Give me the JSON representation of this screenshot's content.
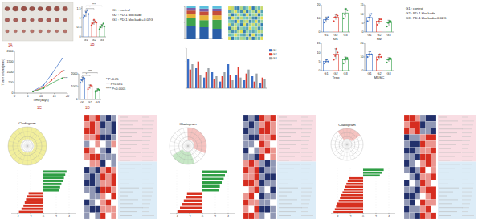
{
  "chart_data": [
    {
      "type": "bar",
      "categories": [
        "G1",
        "G2",
        "G3"
      ],
      "values": [
        1.2,
        0.75,
        0.55
      ],
      "errors": [
        0.15,
        0.12,
        0.1
      ],
      "points": [
        [
          1.0,
          1.1,
          1.3,
          1.4,
          1.2
        ],
        [
          0.6,
          0.7,
          0.9,
          0.8,
          0.75
        ],
        [
          0.4,
          0.5,
          0.6,
          0.7,
          0.55
        ]
      ],
      "colors": [
        "#3b6fc6",
        "#e03c31",
        "#2f9e44"
      ],
      "ylim": [
        0,
        1.6
      ],
      "yticks": [
        0,
        0.5,
        1,
        1.5
      ],
      "annotations": [
        "*",
        "***"
      ]
    },
    {
      "type": "line",
      "x": [
        7,
        11,
        14,
        18
      ],
      "series": [
        {
          "color": "#3b6fc6",
          "values": [
            90,
            380,
            900,
            1650
          ]
        },
        {
          "color": "#e03c31",
          "values": [
            80,
            280,
            620,
            1050
          ]
        },
        {
          "color": "#2f9e44",
          "values": [
            70,
            230,
            470,
            720
          ]
        }
      ],
      "xlim": [
        0,
        20
      ],
      "xticks": [
        0,
        5,
        10,
        15,
        20
      ],
      "ylim": [
        0,
        2000
      ],
      "yticks": [
        0,
        500,
        1000,
        1500,
        2000
      ],
      "x_label": "Time(days)",
      "y_label": "Tumor Volume(mm³)",
      "annotations": [
        "*",
        "****"
      ],
      "marker": "circle"
    },
    {
      "type": "bar",
      "categories": [
        "G1",
        "G2",
        "G3"
      ],
      "values": [
        1550,
        980,
        700
      ],
      "errors": [
        200,
        150,
        120
      ],
      "points": [
        [
          1300,
          1500,
          1700,
          1650
        ],
        [
          800,
          950,
          1100,
          1050
        ],
        [
          600,
          650,
          800,
          750
        ]
      ],
      "colors": [
        "#3b6fc6",
        "#e03c31",
        "#2f9e44"
      ],
      "ylim": [
        0,
        2000
      ],
      "yticks": [
        0,
        1000,
        2000
      ],
      "annotations": [
        "*",
        "****"
      ]
    },
    {
      "type": "bar",
      "stacked": true,
      "tick_labels": false,
      "categories": [
        null,
        null,
        null
      ],
      "series": [
        {
          "color": "#2b5fa8",
          "values": [
            40,
            35,
            30
          ]
        },
        {
          "color": "#3fa34d",
          "values": [
            25,
            22,
            28
          ]
        },
        {
          "color": "#e8b33a",
          "values": [
            12,
            15,
            14
          ]
        },
        {
          "color": "#c44e3a",
          "values": [
            10,
            12,
            13
          ]
        },
        {
          "color": "#7b5ea7",
          "values": [
            8,
            9,
            8
          ]
        },
        {
          "color": "#5bc0de",
          "values": [
            5,
            7,
            7
          ]
        }
      ],
      "ylim": [
        0,
        100
      ],
      "yticks": [
        0,
        50,
        100
      ]
    },
    {
      "type": "heatmap",
      "color_range": [
        0,
        1
      ],
      "cells": [
        [
          0.9,
          0.8,
          0.2,
          0.1,
          0.7,
          0.3,
          0.5,
          0.9,
          0.1,
          0.6,
          0.4,
          0.8
        ],
        [
          0.3,
          0.6,
          0.9,
          0.4,
          0.2,
          0.8,
          0.1,
          0.5,
          0.7,
          0.2,
          0.9,
          0.3
        ],
        [
          0.7,
          0.1,
          0.4,
          0.8,
          0.5,
          0.2,
          0.9,
          0.3,
          0.6,
          0.8,
          0.1,
          0.5
        ],
        [
          0.2,
          0.9,
          0.6,
          0.3,
          0.8,
          0.5,
          0.4,
          0.7,
          0.2,
          0.1,
          0.6,
          0.9
        ],
        [
          0.5,
          0.4,
          0.1,
          0.9,
          0.3,
          0.7,
          0.8,
          0.2,
          0.4,
          0.9,
          0.3,
          0.6
        ],
        [
          0.8,
          0.3,
          0.7,
          0.5,
          0.1,
          0.9,
          0.2,
          0.6,
          0.8,
          0.4,
          0.7,
          0.1
        ],
        [
          0.1,
          0.7,
          0.8,
          0.2,
          0.6,
          0.4,
          0.3,
          0.9,
          0.5,
          0.7,
          0.2,
          0.4
        ],
        [
          0.6,
          0.2,
          0.3,
          0.7,
          0.9,
          0.1,
          0.6,
          0.4,
          0.3,
          0.5,
          0.8,
          0.7
        ],
        [
          0.4,
          0.5,
          0.9,
          0.6,
          0.4,
          0.3,
          0.7,
          0.1,
          0.9,
          0.3,
          0.5,
          0.2
        ],
        [
          0.9,
          0.1,
          0.5,
          0.4,
          0.7,
          0.6,
          0.2,
          0.8,
          0.1,
          0.6,
          0.4,
          0.9
        ]
      ]
    },
    {
      "type": "bar",
      "tick_labels": false,
      "legend": "right",
      "categories": [
        null,
        null,
        null,
        null,
        null,
        null,
        null,
        null,
        null,
        null
      ],
      "series": [
        {
          "name": "G1",
          "color": "#3b6fc6",
          "values": [
            22,
            15,
            8,
            12,
            5,
            18,
            10,
            6,
            9,
            4
          ]
        },
        {
          "name": "G2",
          "color": "#e03c31",
          "values": [
            14,
            20,
            12,
            7,
            9,
            10,
            16,
            11,
            5,
            8
          ]
        },
        {
          "name": "G3",
          "color": "#9aa0a6",
          "values": [
            18,
            10,
            15,
            9,
            12,
            6,
            8,
            14,
            11,
            7
          ]
        }
      ],
      "ylim": [
        0,
        30
      ],
      "yticks": [
        0,
        10,
        20,
        30
      ]
    },
    {
      "type": "bar",
      "title": "M1",
      "categories": [
        "G1",
        "G2",
        "G3"
      ],
      "values": [
        9,
        11,
        14
      ],
      "errors": [
        2,
        2,
        3
      ],
      "points": [
        [
          7,
          9,
          10,
          11
        ],
        [
          8,
          11,
          13,
          12
        ],
        [
          10,
          13,
          17,
          16
        ]
      ],
      "colors": [
        "#3b6fc6",
        "#e03c31",
        "#2f9e44"
      ],
      "ylim": [
        0,
        20
      ],
      "yticks": [
        0,
        10,
        20
      ]
    },
    {
      "type": "bar",
      "title": "M2",
      "categories": [
        "G1",
        "G2",
        "G3"
      ],
      "values": [
        8,
        6,
        5
      ],
      "errors": [
        2,
        1.5,
        1.5
      ],
      "points": [
        [
          6,
          8,
          9,
          10
        ],
        [
          4,
          6,
          7,
          7
        ],
        [
          3,
          5,
          6,
          6
        ]
      ],
      "colors": [
        "#3b6fc6",
        "#e03c31",
        "#2f9e44"
      ],
      "ylim": [
        0,
        15
      ],
      "yticks": [
        0,
        5,
        10,
        15
      ]
    },
    {
      "type": "bar",
      "title": "Treg",
      "categories": [
        "G1",
        "G2",
        "G3"
      ],
      "values": [
        5,
        9,
        6
      ],
      "errors": [
        1,
        3,
        1.5
      ],
      "points": [
        [
          4,
          5,
          6,
          5
        ],
        [
          6,
          8,
          12,
          10
        ],
        [
          4,
          6,
          7,
          7
        ]
      ],
      "colors": [
        "#3b6fc6",
        "#e03c31",
        "#2f9e44"
      ],
      "ylim": [
        0,
        15
      ],
      "yticks": [
        0,
        5,
        10,
        15
      ]
    },
    {
      "type": "bar",
      "title": "MDSC",
      "categories": [
        "G1",
        "G2",
        "G3"
      ],
      "values": [
        12,
        10,
        8
      ],
      "errors": [
        2,
        2,
        1.5
      ],
      "points": [
        [
          10,
          12,
          14,
          12
        ],
        [
          8,
          10,
          12,
          10
        ],
        [
          6,
          8,
          9,
          9
        ]
      ],
      "colors": [
        "#3b6fc6",
        "#e03c31",
        "#2f9e44"
      ],
      "ylim": [
        0,
        20
      ],
      "yticks": [
        0,
        10,
        20
      ]
    },
    {
      "type": "bar",
      "orientation": "horizontal",
      "categories": [
        null,
        null,
        null,
        null,
        null,
        null,
        null,
        null,
        null,
        null,
        null,
        null,
        null,
        null
      ],
      "values": [
        3.6,
        3.4,
        3.2,
        3.0,
        2.8,
        2.6,
        2.4,
        -2.3,
        -2.5,
        -2.7,
        -2.9,
        -3.1,
        -3.4,
        -3.8
      ],
      "colors": [
        "#2e9e44",
        "#2e9e44",
        "#2e9e44",
        "#2e9e44",
        "#2e9e44",
        "#2e9e44",
        "#2e9e44",
        "#d7301f",
        "#d7301f",
        "#d7301f",
        "#d7301f",
        "#d7301f",
        "#d7301f",
        "#d7301f"
      ],
      "xlim": [
        -5,
        5
      ],
      "xticks": [
        -4,
        -2,
        0,
        2,
        4
      ]
    },
    {
      "type": "bar",
      "orientation": "horizontal",
      "categories": [
        null,
        null,
        null,
        null,
        null,
        null,
        null,
        null,
        null,
        null,
        null,
        null
      ],
      "values": [
        3.8,
        3.5,
        3.3,
        3.0,
        2.7,
        2.5,
        -2.4,
        -2.6,
        -2.9,
        -3.2,
        -3.5,
        -3.9
      ],
      "colors": [
        "#2e9e44",
        "#2e9e44",
        "#2e9e44",
        "#2e9e44",
        "#2e9e44",
        "#2e9e44",
        "#d7301f",
        "#d7301f",
        "#d7301f",
        "#d7301f",
        "#d7301f",
        "#d7301f"
      ],
      "xlim": [
        -5,
        5
      ],
      "xticks": [
        -4,
        -2,
        0,
        2,
        4
      ]
    },
    {
      "type": "bar",
      "orientation": "horizontal",
      "categories": [
        null,
        null,
        null,
        null,
        null,
        null,
        null,
        null,
        null,
        null,
        null,
        null,
        null,
        null,
        null,
        null
      ],
      "values": [
        3.2,
        2.9,
        2.6,
        -2.2,
        -2.4,
        -2.6,
        -2.8,
        -3.0,
        -3.2,
        -3.4,
        -3.6,
        -3.8,
        -4.0,
        -4.2,
        -4.4,
        -4.6
      ],
      "colors": [
        "#2e9e44",
        "#2e9e44",
        "#2e9e44",
        "#d7301f",
        "#d7301f",
        "#d7301f",
        "#d7301f",
        "#d7301f",
        "#d7301f",
        "#d7301f",
        "#d7301f",
        "#d7301f",
        "#d7301f",
        "#d7301f",
        "#d7301f",
        "#d7301f"
      ],
      "xlim": [
        -5,
        5
      ],
      "xticks": [
        -4,
        -2,
        0,
        2,
        4
      ]
    },
    {
      "type": "heatmap",
      "color_range": [
        -2,
        2
      ],
      "cells": [
        [
          2,
          1,
          2,
          -1,
          -2,
          -1
        ],
        [
          1,
          2,
          1,
          -2,
          -1,
          -2
        ],
        [
          2,
          2,
          1,
          -1,
          -1,
          -2
        ],
        [
          1,
          1,
          2,
          -2,
          -2,
          -1
        ],
        [
          -1,
          0,
          1,
          0,
          -1,
          1
        ],
        [
          2,
          1,
          0,
          -1,
          -2,
          0
        ],
        [
          1,
          2,
          2,
          -1,
          -1,
          -1
        ],
        [
          0,
          1,
          1,
          -2,
          0,
          -1
        ],
        [
          -2,
          -1,
          -2,
          1,
          2,
          1
        ],
        [
          -1,
          -2,
          -1,
          2,
          1,
          2
        ],
        [
          -2,
          -2,
          -1,
          1,
          1,
          2
        ],
        [
          -1,
          -1,
          -2,
          2,
          2,
          1
        ],
        [
          0,
          -1,
          -1,
          1,
          0,
          2
        ],
        [
          -2,
          -1,
          0,
          1,
          2,
          0
        ],
        [
          -1,
          -2,
          -2,
          1,
          1,
          1
        ],
        [
          -1,
          0,
          -1,
          2,
          0,
          1
        ]
      ]
    },
    {
      "type": "heatmap",
      "color_range": [
        -2,
        2
      ],
      "cells": [
        [
          -2,
          -1,
          -2,
          2,
          1,
          2
        ],
        [
          -1,
          -2,
          -1,
          1,
          2,
          1
        ],
        [
          -2,
          -1,
          -1,
          2,
          2,
          1
        ],
        [
          -1,
          -2,
          -2,
          1,
          1,
          2
        ],
        [
          -1,
          -1,
          0,
          2,
          1,
          0
        ],
        [
          -2,
          0,
          -1,
          1,
          2,
          1
        ],
        [
          -1,
          -1,
          -2,
          2,
          0,
          1
        ],
        [
          1,
          2,
          1,
          -1,
          -2,
          -1
        ],
        [
          2,
          1,
          2,
          -2,
          -1,
          -1
        ],
        [
          1,
          1,
          2,
          -1,
          -2,
          -2
        ],
        [
          2,
          2,
          1,
          -2,
          -1,
          -1
        ],
        [
          0,
          1,
          2,
          -1,
          0,
          -2
        ],
        [
          1,
          2,
          0,
          -2,
          -1,
          -1
        ],
        [
          2,
          1,
          1,
          -1,
          -1,
          0
        ],
        [
          1,
          0,
          2,
          -2,
          -2,
          -1
        ],
        [
          2,
          2,
          1,
          -1,
          0,
          -1
        ]
      ]
    },
    {
      "type": "heatmap",
      "color_range": [
        -2,
        2
      ],
      "cells": [
        [
          2,
          2,
          1,
          -1,
          -2,
          -2
        ],
        [
          1,
          2,
          2,
          -2,
          -1,
          -1
        ],
        [
          2,
          1,
          2,
          -1,
          -1,
          -2
        ],
        [
          -2,
          -1,
          -1,
          1,
          2,
          2
        ],
        [
          -1,
          -2,
          -2,
          2,
          1,
          1
        ],
        [
          -2,
          -2,
          -1,
          1,
          1,
          2
        ],
        [
          -1,
          -1,
          -2,
          2,
          2,
          1
        ],
        [
          -2,
          -1,
          0,
          1,
          2,
          1
        ],
        [
          -1,
          -2,
          -1,
          2,
          0,
          1
        ],
        [
          0,
          -1,
          -2,
          1,
          1,
          2
        ],
        [
          -2,
          0,
          -1,
          2,
          1,
          0
        ],
        [
          -1,
          -1,
          -2,
          1,
          2,
          2
        ],
        [
          -2,
          -2,
          -1,
          0,
          1,
          2
        ],
        [
          -1,
          -2,
          0,
          2,
          1,
          1
        ],
        [
          -2,
          -1,
          -1,
          1,
          2,
          0
        ],
        [
          -1,
          -1,
          -2,
          2,
          1,
          2
        ]
      ]
    }
  ],
  "figure": {
    "panel_labels": [
      "1A",
      "1B",
      "1C",
      "1D"
    ],
    "group_legend": [
      "G1 : control",
      "G2 : PD-1 blockade",
      "G3 : PD-1 blockade+0.02G"
    ],
    "p_legend": [
      "* P<0.05",
      "*** P<0.001",
      "**** P<0.0001"
    ],
    "group_legend_right": [
      "G1 : control",
      "G2 : PD-1 blockade",
      "G3 : PD-1 blockade+0.02G"
    ],
    "cladogram_titles": [
      "Cladogram",
      "Cladogram",
      "Cladogram"
    ]
  }
}
